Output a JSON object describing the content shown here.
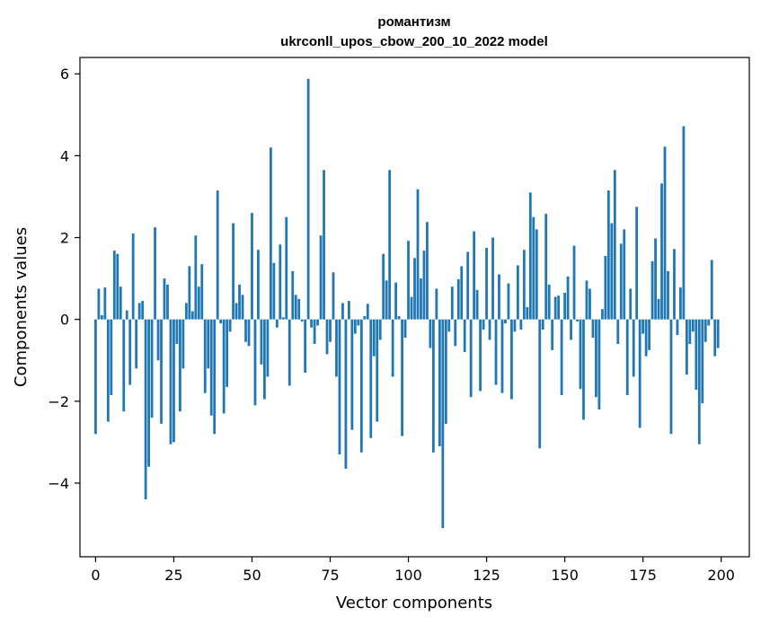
{
  "chart_data": {
    "type": "bar",
    "title": "романтизм",
    "subtitle": "ukrconll_upos_cbow_200_10_2022 model",
    "xlabel": "Vector components",
    "ylabel": "Components values",
    "xlim": [
      -5,
      209
    ],
    "ylim": [
      -5.8,
      6.4
    ],
    "xticks": [
      0,
      25,
      50,
      75,
      100,
      125,
      150,
      175,
      200
    ],
    "xtick_labels": [
      "0",
      "25",
      "50",
      "75",
      "100",
      "125",
      "150",
      "175",
      "200"
    ],
    "yticks": [
      -4,
      -2,
      0,
      2,
      4,
      6
    ],
    "ytick_labels": [
      "−4",
      "−2",
      "0",
      "2",
      "4",
      "6"
    ],
    "grid": false,
    "bar_color": "#1f77b4",
    "x": [
      0,
      1,
      2,
      3,
      4,
      5,
      6,
      7,
      8,
      9,
      10,
      11,
      12,
      13,
      14,
      15,
      16,
      17,
      18,
      19,
      20,
      21,
      22,
      23,
      24,
      25,
      26,
      27,
      28,
      29,
      30,
      31,
      32,
      33,
      34,
      35,
      36,
      37,
      38,
      39,
      40,
      41,
      42,
      43,
      44,
      45,
      46,
      47,
      48,
      49,
      50,
      51,
      52,
      53,
      54,
      55,
      56,
      57,
      58,
      59,
      60,
      61,
      62,
      63,
      64,
      65,
      66,
      67,
      68,
      69,
      70,
      71,
      72,
      73,
      74,
      75,
      76,
      77,
      78,
      79,
      80,
      81,
      82,
      83,
      84,
      85,
      86,
      87,
      88,
      89,
      90,
      91,
      92,
      93,
      94,
      95,
      96,
      97,
      98,
      99,
      100,
      101,
      102,
      103,
      104,
      105,
      106,
      107,
      108,
      109,
      110,
      111,
      112,
      113,
      114,
      115,
      116,
      117,
      118,
      119,
      120,
      121,
      122,
      123,
      124,
      125,
      126,
      127,
      128,
      129,
      130,
      131,
      132,
      133,
      134,
      135,
      136,
      137,
      138,
      139,
      140,
      141,
      142,
      143,
      144,
      145,
      146,
      147,
      148,
      149,
      150,
      151,
      152,
      153,
      154,
      155,
      156,
      157,
      158,
      159,
      160,
      161,
      162,
      163,
      164,
      165,
      166,
      167,
      168,
      169,
      170,
      171,
      172,
      173,
      174,
      175,
      176,
      177,
      178,
      179,
      180,
      181,
      182,
      183,
      184,
      185,
      186,
      187,
      188,
      189,
      190,
      191,
      192,
      193,
      194,
      195,
      196,
      197,
      198,
      199
    ],
    "values": [
      -2.8,
      0.75,
      0.1,
      0.78,
      -2.5,
      -1.85,
      1.68,
      1.6,
      0.8,
      -2.25,
      0.22,
      -1.6,
      2.1,
      -1.2,
      0.4,
      0.45,
      -4.4,
      -3.6,
      -2.4,
      2.25,
      -1.0,
      -2.55,
      1.0,
      0.85,
      -3.05,
      -3.0,
      -0.6,
      -2.25,
      -1.2,
      0.4,
      1.3,
      0.2,
      2.05,
      0.8,
      1.35,
      -1.8,
      -1.2,
      -2.35,
      -2.8,
      3.15,
      -0.1,
      -2.3,
      -1.65,
      -0.3,
      2.35,
      0.4,
      0.85,
      0.6,
      -0.55,
      -0.65,
      2.6,
      -2.1,
      1.7,
      -1.1,
      -1.95,
      -1.4,
      4.2,
      1.38,
      -0.2,
      1.83,
      0.05,
      2.5,
      -1.62,
      1.18,
      0.6,
      0.5,
      -0.05,
      -1.3,
      5.88,
      -0.2,
      -0.6,
      -0.15,
      2.05,
      3.65,
      -0.85,
      -0.55,
      1.15,
      -1.4,
      -3.3,
      0.4,
      -3.65,
      0.45,
      -2.7,
      -0.35,
      -0.15,
      -3.25,
      0.08,
      0.38,
      -2.9,
      -0.9,
      -2.5,
      -0.5,
      1.6,
      0.95,
      3.65,
      -1.4,
      0.9,
      0.08,
      -2.85,
      -0.45,
      1.92,
      0.55,
      1.5,
      3.18,
      1.0,
      1.68,
      2.38,
      -0.7,
      -3.25,
      0.75,
      -3.1,
      -5.1,
      -2.55,
      -0.3,
      0.8,
      -0.65,
      0.98,
      1.3,
      -0.8,
      1.65,
      -1.9,
      2.15,
      0.72,
      -1.75,
      -0.25,
      1.75,
      -0.5,
      2.0,
      -1.6,
      1.1,
      -1.8,
      -0.1,
      0.88,
      -1.95,
      -0.3,
      1.32,
      -0.25,
      1.7,
      0.3,
      3.1,
      2.5,
      2.2,
      -3.15,
      -0.25,
      2.58,
      0.85,
      -0.75,
      0.55,
      0.58,
      -1.85,
      0.65,
      1.05,
      -0.5,
      1.8,
      -0.05,
      -1.7,
      -2.45,
      0.95,
      0.75,
      -0.45,
      -1.9,
      -2.2,
      0.25,
      1.55,
      3.15,
      2.35,
      3.65,
      -0.6,
      1.85,
      2.2,
      -1.85,
      0.75,
      -1.4,
      2.75,
      -2.65,
      -0.35,
      -0.9,
      -0.75,
      1.42,
      1.98,
      0.5,
      3.32,
      4.22,
      1.18,
      -2.8,
      1.72,
      -0.38,
      0.78,
      4.72,
      -1.35,
      -0.6,
      -0.3,
      -1.72,
      -3.05,
      -2.05,
      -0.55,
      -0.15,
      1.45,
      -0.9,
      -0.7
    ]
  }
}
